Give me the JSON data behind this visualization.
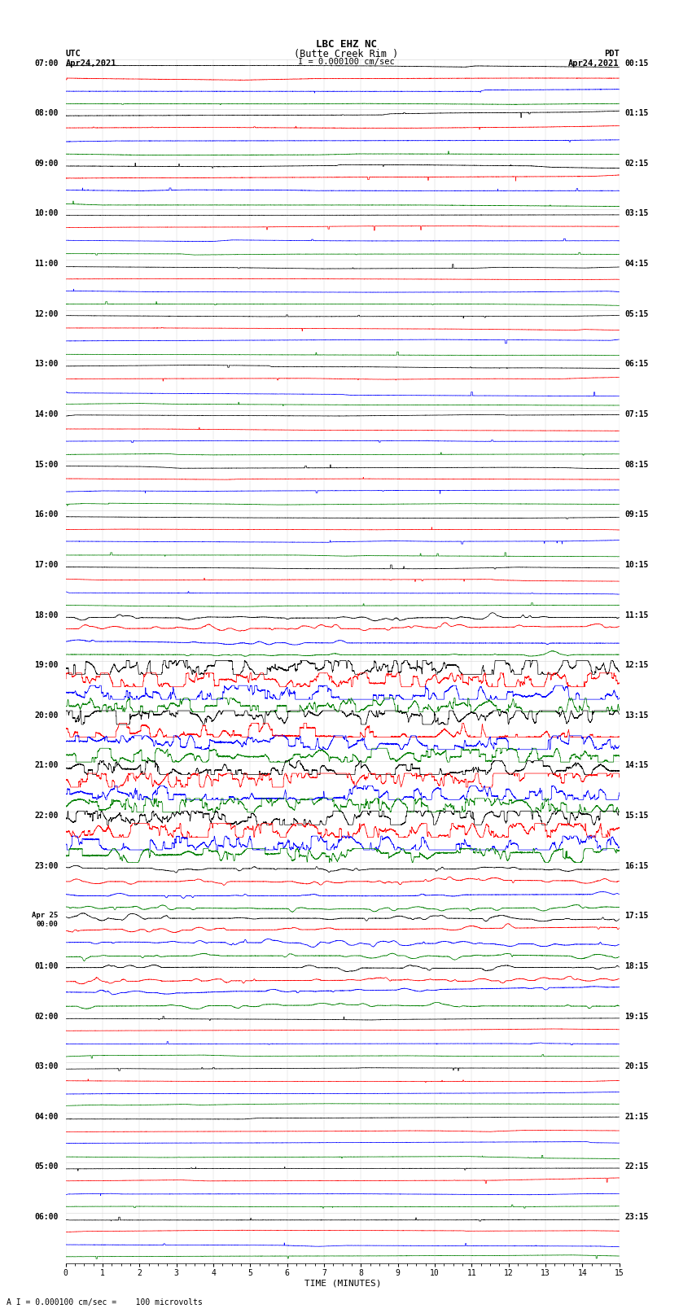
{
  "title_line1": "LBC EHZ NC",
  "title_line2": "(Butte Creek Rim )",
  "scale_label": "I = 0.000100 cm/sec",
  "left_header": "UTC\nApr24,2021",
  "right_header": "PDT\nApr24,2021",
  "bottom_note": "A I = 0.000100 cm/sec =    100 microvolts",
  "xlabel": "TIME (MINUTES)",
  "xlim": [
    0,
    15
  ],
  "xticks": [
    0,
    1,
    2,
    3,
    4,
    5,
    6,
    7,
    8,
    9,
    10,
    11,
    12,
    13,
    14,
    15
  ],
  "colors": [
    "black",
    "red",
    "blue",
    "green"
  ],
  "left_labels": [
    "07:00",
    "08:00",
    "09:00",
    "10:00",
    "11:00",
    "12:00",
    "13:00",
    "14:00",
    "15:00",
    "16:00",
    "17:00",
    "18:00",
    "19:00",
    "20:00",
    "21:00",
    "22:00",
    "23:00",
    "Apr25\n00:00",
    "01:00",
    "02:00",
    "03:00",
    "04:00",
    "05:00",
    "06:00"
  ],
  "right_labels": [
    "00:15",
    "01:15",
    "02:15",
    "03:15",
    "04:15",
    "05:15",
    "06:15",
    "07:15",
    "08:15",
    "09:15",
    "10:15",
    "11:15",
    "12:15",
    "13:15",
    "14:15",
    "15:15",
    "16:15",
    "17:15",
    "18:15",
    "19:15",
    "20:15",
    "21:15",
    "22:15",
    "23:15"
  ],
  "fig_width": 8.5,
  "fig_height": 16.13,
  "dpi": 100,
  "bg_color": "white",
  "num_hours": 24,
  "traces_per_hour": 4,
  "noise_seed": 12345
}
